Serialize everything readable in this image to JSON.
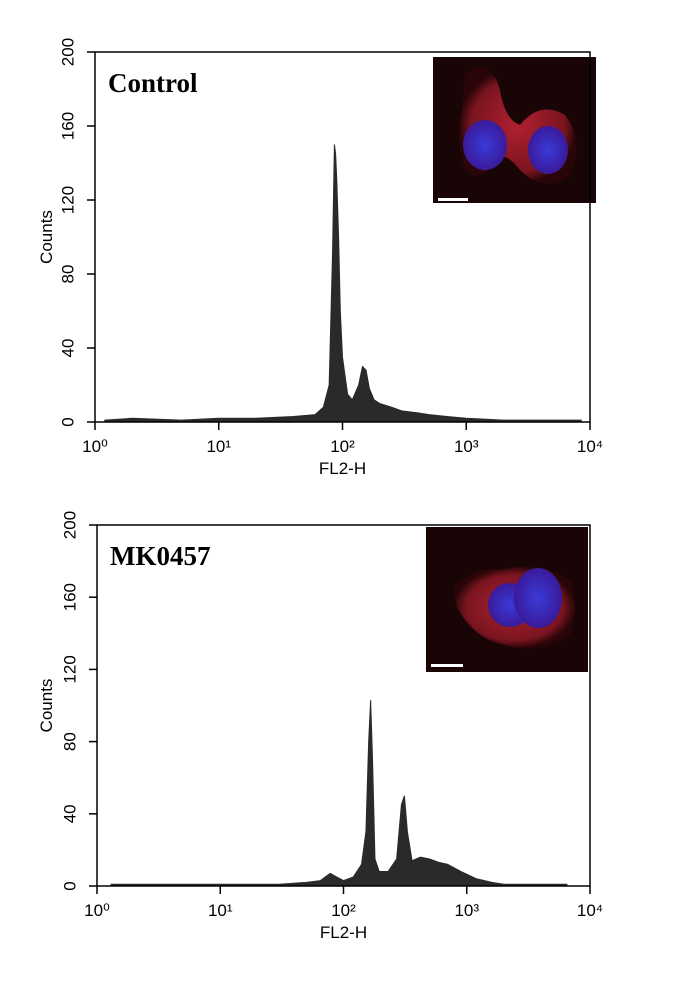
{
  "chart_data": [
    {
      "type": "area",
      "annotation": "Control",
      "xlabel": "FL2-H",
      "ylabel": "Counts",
      "xscale": "log",
      "xlim": [
        1,
        10000
      ],
      "ylim": [
        0,
        200
      ],
      "xticks": [
        {
          "value": 1,
          "label": "10⁰"
        },
        {
          "value": 10,
          "label": "10¹"
        },
        {
          "value": 100,
          "label": "10²"
        },
        {
          "value": 1000,
          "label": "10³"
        },
        {
          "value": 10000,
          "label": "10⁴"
        }
      ],
      "yticks": [
        0,
        40,
        80,
        120,
        160,
        200
      ],
      "color": "#2a2a2a",
      "x": [
        1.2,
        2,
        5,
        10,
        20,
        40,
        60,
        70,
        78,
        83,
        86,
        88,
        90,
        93,
        96,
        100,
        110,
        120,
        135,
        145,
        155,
        165,
        180,
        200,
        250,
        300,
        400,
        500,
        700,
        1000,
        2000,
        4000,
        8500
      ],
      "values": [
        1,
        2,
        1,
        2,
        2,
        3,
        4,
        8,
        20,
        90,
        150,
        145,
        130,
        100,
        60,
        35,
        15,
        12,
        20,
        30,
        28,
        18,
        12,
        10,
        8,
        6,
        5,
        4,
        3,
        2,
        1,
        1,
        1
      ]
    },
    {
      "type": "area",
      "annotation": "MK0457",
      "xlabel": "FL2-H",
      "ylabel": "Counts",
      "xscale": "log",
      "xlim": [
        1,
        10000
      ],
      "ylim": [
        0,
        200
      ],
      "xticks": [
        {
          "value": 1,
          "label": "10⁰"
        },
        {
          "value": 10,
          "label": "10¹"
        },
        {
          "value": 100,
          "label": "10²"
        },
        {
          "value": 1000,
          "label": "10³"
        },
        {
          "value": 10000,
          "label": "10⁴"
        }
      ],
      "yticks": [
        0,
        40,
        80,
        120,
        160,
        200
      ],
      "color": "#2a2a2a",
      "x": [
        1.3,
        3,
        10,
        30,
        50,
        65,
        78,
        88,
        100,
        120,
        140,
        152,
        160,
        166,
        172,
        180,
        195,
        230,
        270,
        295,
        312,
        330,
        360,
        420,
        500,
        600,
        700,
        900,
        1200,
        1600,
        2000,
        4000,
        6500
      ],
      "values": [
        1,
        1,
        1,
        1,
        2,
        3,
        7,
        5,
        3,
        5,
        12,
        30,
        80,
        103,
        70,
        15,
        8,
        8,
        15,
        45,
        50,
        30,
        14,
        16,
        15,
        13,
        12,
        8,
        4,
        2,
        1,
        1,
        1
      ]
    }
  ]
}
